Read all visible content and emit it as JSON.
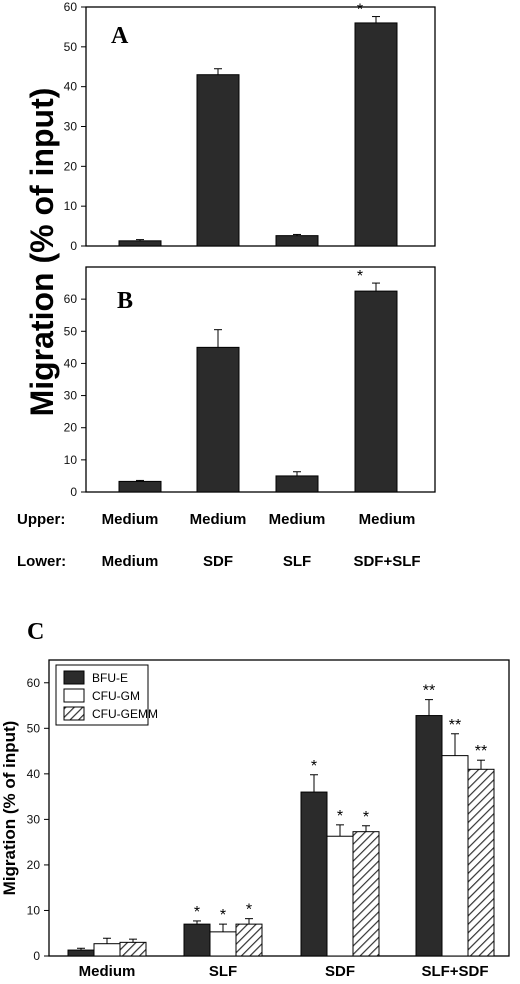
{
  "chart_data": [
    {
      "panel": "A",
      "type": "bar",
      "ylabel": "Migration (% of input)",
      "ylim": [
        0,
        60
      ],
      "yticks": [
        0,
        10,
        20,
        30,
        40,
        50,
        60
      ],
      "categories": [
        "Medium|Medium",
        "SDF|Medium",
        "SLF|Medium",
        "SDF+SLF|Medium"
      ],
      "values": [
        1.3,
        43.0,
        2.6,
        56.0
      ],
      "errors": [
        0.3,
        1.5,
        0.3,
        1.6
      ],
      "annotations": [
        "",
        "",
        "",
        "*"
      ],
      "color": "#2b2b2b",
      "grid": false
    },
    {
      "panel": "B",
      "type": "bar",
      "ylim": [
        0,
        70
      ],
      "yticks": [
        0,
        10,
        20,
        30,
        40,
        50,
        60
      ],
      "categories": [
        "Medium|Medium",
        "SDF|Medium",
        "SLF|Medium",
        "SDF+SLF|Medium"
      ],
      "values": [
        3.3,
        45.0,
        5.0,
        62.5
      ],
      "errors": [
        0.3,
        5.5,
        1.3,
        2.5
      ],
      "annotations": [
        "",
        "",
        "",
        "*"
      ],
      "color": "#2b2b2b",
      "grid": false,
      "row_labels": {
        "upper_label": "Upper:",
        "lower_label": "Lower:",
        "upper": [
          "Medium",
          "Medium",
          "Medium",
          "Medium"
        ],
        "lower": [
          "Medium",
          "SDF",
          "SLF",
          "SDF+SLF"
        ]
      }
    },
    {
      "panel": "C",
      "type": "bar",
      "ylabel": "Migration (% of input)",
      "ylim": [
        0,
        65
      ],
      "yticks": [
        0,
        10,
        20,
        30,
        40,
        50,
        60
      ],
      "categories": [
        "Medium",
        "SLF",
        "SDF",
        "SLF+SDF"
      ],
      "legend_position": "top-left",
      "grid": false,
      "series": [
        {
          "name": "BFU-E",
          "values": [
            1.3,
            7.0,
            36.0,
            52.8
          ],
          "errors": [
            0.4,
            0.7,
            3.8,
            3.5
          ],
          "annotations": [
            "",
            "*",
            "*",
            "**"
          ],
          "style": "solid",
          "color": "#2b2b2b"
        },
        {
          "name": "CFU-GM",
          "values": [
            2.7,
            5.3,
            26.3,
            44.0
          ],
          "errors": [
            1.2,
            1.7,
            2.5,
            4.8
          ],
          "annotations": [
            "",
            "*",
            "*",
            "**"
          ],
          "style": "open",
          "color": "#ffffff"
        },
        {
          "name": "CFU-GEMM",
          "values": [
            3.0,
            7.0,
            27.3,
            41.0
          ],
          "errors": [
            0.7,
            1.2,
            1.3,
            2.0
          ],
          "annotations": [
            "",
            "*",
            "*",
            "**"
          ],
          "style": "hatched",
          "color": "#555555"
        }
      ]
    }
  ]
}
